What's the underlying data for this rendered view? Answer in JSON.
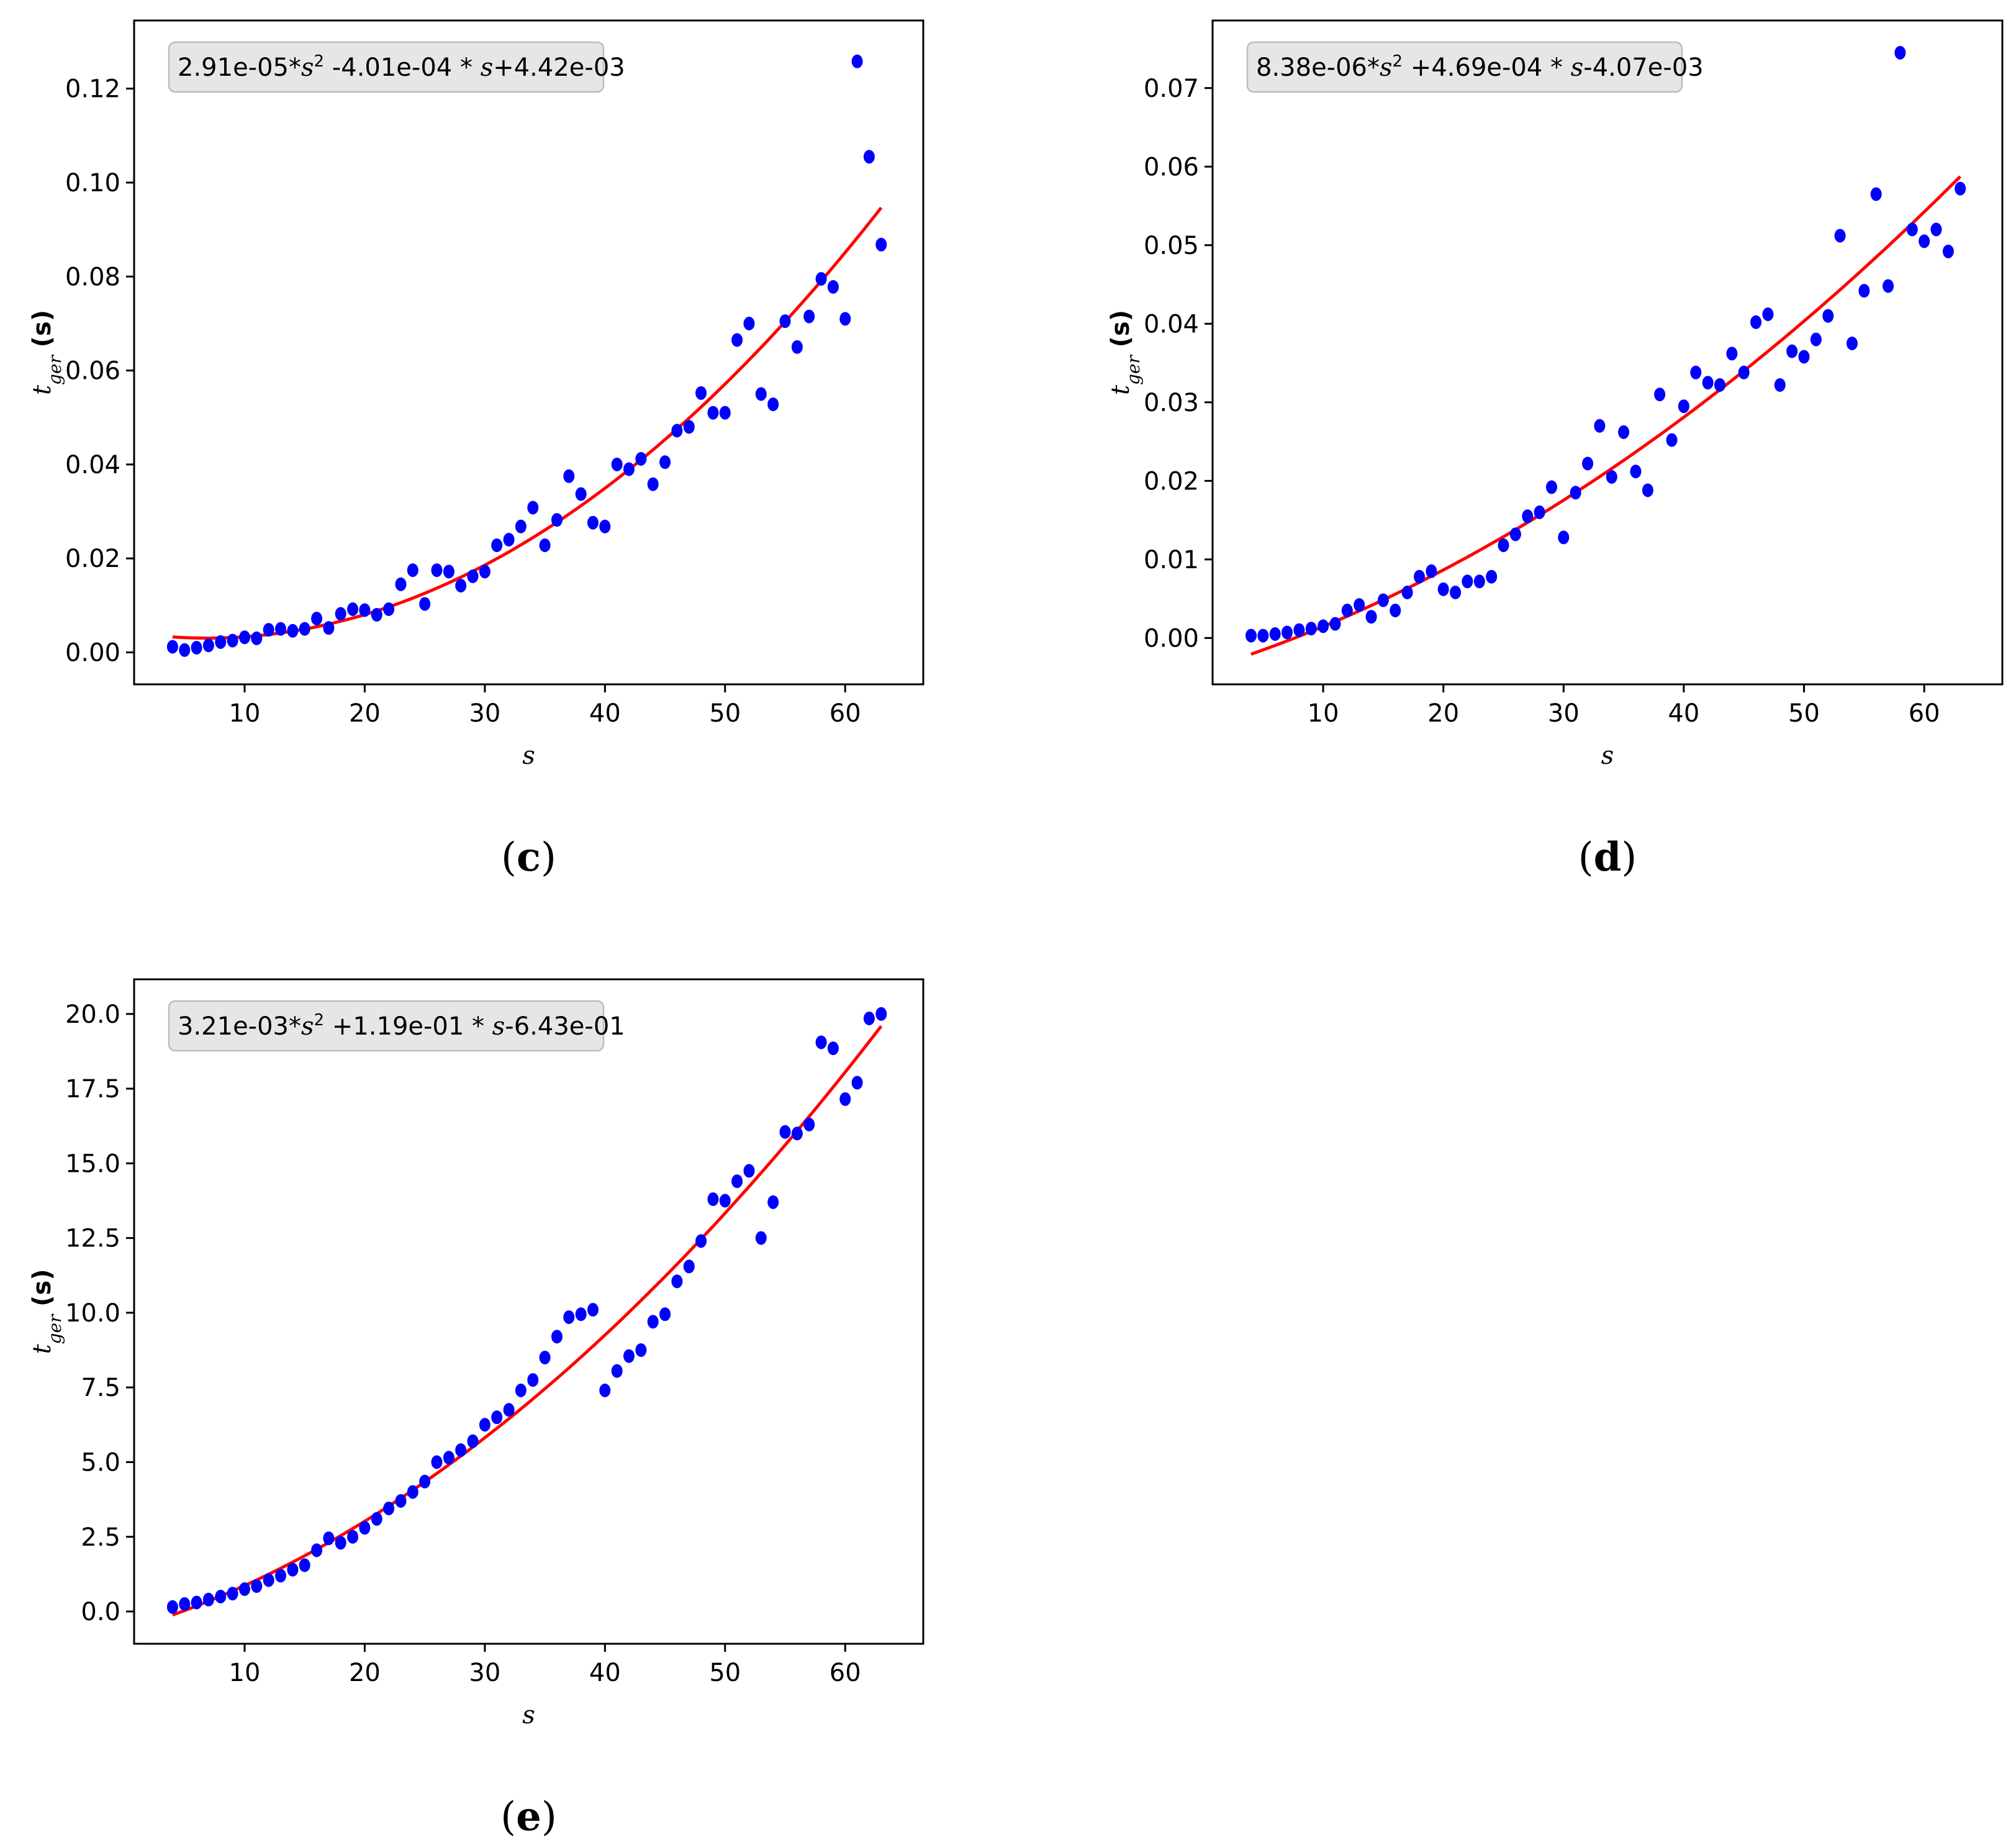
{
  "chart_data": [
    {
      "type": "scatter",
      "panel": "c",
      "caption": {
        "open": "(",
        "letter": "c",
        "close": ")"
      },
      "equation": {
        "a": "2.91e-05*",
        "b": " -4.01e-04 * ",
        "c": "+4.42e-03"
      },
      "xlabel": "s",
      "ylabel": {
        "var": "t",
        "sub": "ger",
        "unit": "(s)"
      },
      "xlim": [
        0.8,
        66.5
      ],
      "ylim": [
        -0.0068,
        0.1345
      ],
      "xticks": [
        10,
        20,
        30,
        40,
        50,
        60
      ],
      "yticks": [
        0.0,
        0.02,
        0.04,
        0.06,
        0.08,
        0.1,
        0.12
      ],
      "ytick_labels": [
        "0.00",
        "0.02",
        "0.04",
        "0.06",
        "0.08",
        "0.10",
        "0.12"
      ],
      "fit": {
        "a": 2.91e-05,
        "b": -0.000401,
        "c": 0.00442,
        "x_range": [
          4,
          63
        ]
      },
      "x": [
        4,
        5,
        6,
        7,
        8,
        9,
        10,
        11,
        12,
        13,
        14,
        15,
        16,
        17,
        18,
        19,
        20,
        21,
        22,
        23,
        24,
        25,
        26,
        27,
        28,
        29,
        30,
        31,
        32,
        33,
        34,
        35,
        36,
        37,
        38,
        39,
        40,
        41,
        42,
        43,
        44,
        45,
        46,
        47,
        48,
        49,
        50,
        51,
        52,
        53,
        54,
        55,
        56,
        57,
        58,
        59,
        60,
        61,
        62,
        63
      ],
      "y": [
        0.0012,
        0.0005,
        0.001,
        0.0015,
        0.0022,
        0.0025,
        0.0032,
        0.003,
        0.0048,
        0.005,
        0.0046,
        0.005,
        0.0072,
        0.0052,
        0.0082,
        0.0092,
        0.009,
        0.008,
        0.0092,
        0.0145,
        0.0175,
        0.0103,
        0.0175,
        0.0172,
        0.0142,
        0.0162,
        0.0172,
        0.0228,
        0.024,
        0.0268,
        0.0308,
        0.0228,
        0.0282,
        0.0375,
        0.0337,
        0.0276,
        0.0268,
        0.04,
        0.039,
        0.0412,
        0.0358,
        0.0405,
        0.0472,
        0.048,
        0.0552,
        0.051,
        0.051,
        0.0665,
        0.07,
        0.055,
        0.0528,
        0.0705,
        0.065,
        0.0715,
        0.0795,
        0.0778,
        0.071,
        0.1258,
        0.1055,
        0.0868
      ]
    },
    {
      "type": "scatter",
      "panel": "d",
      "caption": {
        "open": "(",
        "letter": "d",
        "close": ")"
      },
      "equation": {
        "a": "8.38e-06*",
        "b": " +4.69e-04 * ",
        "c": "-4.07e-03"
      },
      "xlabel": "s",
      "ylabel": {
        "var": "t",
        "sub": "ger",
        "unit": "(s)"
      },
      "xlim": [
        0.8,
        66.5
      ],
      "ylim": [
        -0.0059,
        0.0786
      ],
      "xticks": [
        10,
        20,
        30,
        40,
        50,
        60
      ],
      "yticks": [
        0.0,
        0.01,
        0.02,
        0.03,
        0.04,
        0.05,
        0.06,
        0.07
      ],
      "ytick_labels": [
        "0.00",
        "0.01",
        "0.02",
        "0.03",
        "0.04",
        "0.05",
        "0.06",
        "0.07"
      ],
      "fit": {
        "a": 8.38e-06,
        "b": 0.000469,
        "c": -0.00407,
        "x_range": [
          4,
          63
        ]
      },
      "x": [
        4,
        5,
        6,
        7,
        8,
        9,
        10,
        11,
        12,
        13,
        14,
        15,
        16,
        17,
        18,
        19,
        20,
        21,
        22,
        23,
        24,
        25,
        26,
        27,
        28,
        29,
        30,
        31,
        32,
        33,
        34,
        35,
        36,
        37,
        38,
        39,
        40,
        41,
        42,
        43,
        44,
        45,
        46,
        47,
        48,
        49,
        50,
        51,
        52,
        53,
        54,
        55,
        56,
        57,
        58,
        59,
        60,
        61,
        62,
        63
      ],
      "y": [
        0.0003,
        0.0003,
        0.0005,
        0.0007,
        0.001,
        0.0012,
        0.0015,
        0.0018,
        0.0035,
        0.0042,
        0.0027,
        0.0048,
        0.0035,
        0.0058,
        0.0078,
        0.0085,
        0.0062,
        0.0058,
        0.0072,
        0.0072,
        0.0078,
        0.0118,
        0.0132,
        0.0155,
        0.016,
        0.0192,
        0.0128,
        0.0185,
        0.0222,
        0.027,
        0.0205,
        0.0262,
        0.0212,
        0.0188,
        0.031,
        0.0252,
        0.0295,
        0.0338,
        0.0325,
        0.0322,
        0.0362,
        0.0338,
        0.0402,
        0.0412,
        0.0322,
        0.0365,
        0.0358,
        0.038,
        0.041,
        0.0512,
        0.0375,
        0.0442,
        0.0565,
        0.0448,
        0.0745,
        0.052,
        0.0505,
        0.052,
        0.0492,
        0.0572
      ]
    },
    {
      "type": "scatter",
      "panel": "e",
      "caption": {
        "open": "(",
        "letter": "e",
        "close": ")"
      },
      "equation": {
        "a": "3.21e-03*",
        "b": " +1.19e-01 * ",
        "c": "-6.43e-01"
      },
      "xlabel": "s",
      "ylabel": {
        "var": "t",
        "sub": "ger",
        "unit": "(s)"
      },
      "xlim": [
        0.8,
        66.5
      ],
      "ylim": [
        -1.08,
        21.16
      ],
      "xticks": [
        10,
        20,
        30,
        40,
        50,
        60
      ],
      "yticks": [
        0.0,
        2.5,
        5.0,
        7.5,
        10.0,
        12.5,
        15.0,
        17.5,
        20.0
      ],
      "ytick_labels": [
        "0.0",
        "2.5",
        "5.0",
        "7.5",
        "10.0",
        "12.5",
        "15.0",
        "17.5",
        "20.0"
      ],
      "fit": {
        "a": 0.00321,
        "b": 0.119,
        "c": -0.643,
        "x_range": [
          4,
          63
        ]
      },
      "x": [
        4,
        5,
        6,
        7,
        8,
        9,
        10,
        11,
        12,
        13,
        14,
        15,
        16,
        17,
        18,
        19,
        20,
        21,
        22,
        23,
        24,
        25,
        26,
        27,
        28,
        29,
        30,
        31,
        32,
        33,
        34,
        35,
        36,
        37,
        38,
        39,
        40,
        41,
        42,
        43,
        44,
        45,
        46,
        47,
        48,
        49,
        50,
        51,
        52,
        53,
        54,
        55,
        56,
        57,
        58,
        59,
        60,
        61,
        62,
        63
      ],
      "y": [
        0.15,
        0.25,
        0.3,
        0.4,
        0.5,
        0.6,
        0.75,
        0.85,
        1.05,
        1.2,
        1.4,
        1.55,
        2.05,
        2.45,
        2.3,
        2.5,
        2.8,
        3.1,
        3.45,
        3.7,
        4.0,
        4.35,
        5.0,
        5.15,
        5.4,
        5.7,
        6.25,
        6.5,
        6.75,
        7.4,
        7.75,
        8.5,
        9.2,
        9.85,
        9.95,
        10.1,
        7.4,
        8.05,
        8.55,
        8.75,
        9.7,
        9.95,
        11.05,
        11.55,
        12.4,
        13.8,
        13.75,
        14.4,
        14.75,
        12.5,
        13.7,
        16.05,
        16.0,
        16.3,
        19.05,
        18.85,
        17.15,
        17.7,
        19.85,
        20.0
      ]
    }
  ],
  "colors": {
    "points": "#0000ff",
    "fit": "#ff0000",
    "axes": "#000000",
    "legend_bg": "#e6e6e6",
    "legend_border": "#bdbdbd"
  }
}
